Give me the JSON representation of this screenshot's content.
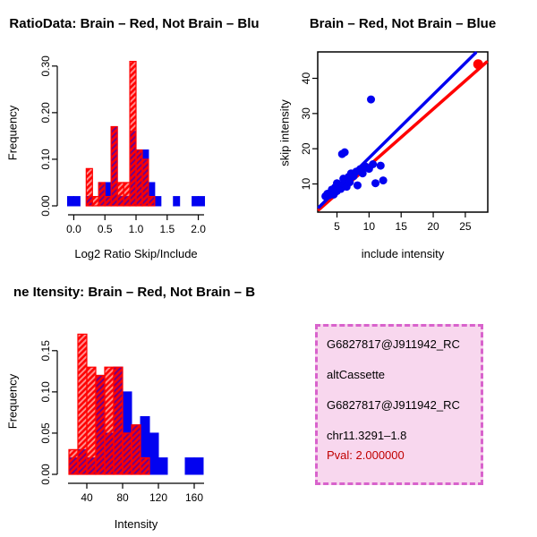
{
  "colors": {
    "red": "#ff0000",
    "blue": "#0202f0"
  },
  "chart_data": [
    {
      "id": "hist_ratio",
      "type": "bar",
      "title": "RatioData: Brain – Red, Not Brain – Blu",
      "xlabel": "Log2 Ratio Skip/Include",
      "ylabel": "Frequency",
      "xlim": [
        -0.15,
        2.15
      ],
      "ylim": [
        0,
        0.315
      ],
      "bin_width": 0.1,
      "bin_starts": [
        -0.1,
        0.0,
        0.1,
        0.2,
        0.3,
        0.4,
        0.5,
        0.6,
        0.7,
        0.8,
        0.9,
        1.0,
        1.1,
        1.2,
        1.3,
        1.4,
        1.5,
        1.6,
        1.7,
        1.8,
        1.9,
        2.0
      ],
      "series": [
        {
          "name": "Not Brain",
          "color": "blue",
          "values": [
            0.02,
            0.02,
            0,
            0.02,
            0,
            0.05,
            0.05,
            0.17,
            0.02,
            0.02,
            0.16,
            0.12,
            0.12,
            0.05,
            0.02,
            0,
            0,
            0.02,
            0,
            0,
            0.02,
            0.02
          ]
        },
        {
          "name": "Brain",
          "color": "red",
          "values": [
            0,
            0,
            0,
            0.08,
            0.02,
            0.05,
            0.02,
            0.17,
            0.05,
            0.05,
            0.31,
            0.12,
            0.1,
            0.02,
            0,
            0,
            0,
            0,
            0,
            0,
            0,
            0
          ]
        }
      ],
      "xticks": [
        0.0,
        0.5,
        1.0,
        1.5,
        2.0
      ],
      "xtick_labels": [
        "0.0",
        "0.5",
        "1.0",
        "1.5",
        "2.0"
      ],
      "yticks": [
        0.0,
        0.1,
        0.2,
        0.3
      ],
      "ytick_labels": [
        "0.00",
        "0.10",
        "0.20",
        "0.30"
      ]
    },
    {
      "id": "scatter",
      "type": "scatter",
      "title": "Brain – Red, Not Brain – Blue",
      "xlabel": "include intensity",
      "ylabel": "skip intensity",
      "xlim": [
        2,
        28.5
      ],
      "ylim": [
        2,
        47.5
      ],
      "series": [
        {
          "name": "Not Brain",
          "color": "blue",
          "points": [
            [
              3.2,
              6.5
            ],
            [
              3.5,
              7.2
            ],
            [
              3.8,
              6.8
            ],
            [
              4,
              7.5
            ],
            [
              4.2,
              8.4
            ],
            [
              4.5,
              7
            ],
            [
              4.7,
              9
            ],
            [
              5,
              8
            ],
            [
              5,
              10.2
            ],
            [
              5.3,
              9.4
            ],
            [
              5.6,
              8.6
            ],
            [
              5.8,
              18.5
            ],
            [
              6,
              10
            ],
            [
              6,
              11.5
            ],
            [
              6.2,
              19
            ],
            [
              6.5,
              9.2
            ],
            [
              6.8,
              12
            ],
            [
              7,
              10.5
            ],
            [
              7.2,
              13
            ],
            [
              7.6,
              12.2
            ],
            [
              8,
              13.5
            ],
            [
              8.2,
              9.6
            ],
            [
              8.6,
              14.2
            ],
            [
              9,
              13
            ],
            [
              9.4,
              15
            ],
            [
              10,
              14.3
            ],
            [
              10.3,
              34
            ],
            [
              10.6,
              15.6
            ],
            [
              11,
              10.2
            ],
            [
              11.8,
              15.2
            ],
            [
              12.2,
              11
            ]
          ]
        },
        {
          "name": "Brain",
          "color": "red",
          "points": [
            [
              27,
              44
            ]
          ]
        }
      ],
      "lines": [
        {
          "color": "red",
          "from": [
            2.2,
            2.7
          ],
          "to": [
            28.3,
            44.6
          ]
        },
        {
          "color": "blue",
          "from": [
            2.2,
            3.4
          ],
          "to": [
            26.6,
            47.2
          ]
        }
      ],
      "xticks": [
        5,
        10,
        15,
        20,
        25
      ],
      "xtick_labels": [
        "5",
        "10",
        "15",
        "20",
        "25"
      ],
      "yticks": [
        10,
        20,
        30,
        40
      ],
      "ytick_labels": [
        "10",
        "20",
        "30",
        "40"
      ]
    },
    {
      "id": "hist_intensity",
      "type": "bar",
      "title": "ne Itensity: Brain – Red, Not Brain – B",
      "xlabel": "Intensity",
      "ylabel": "Frequency",
      "xlim": [
        15,
        175
      ],
      "ylim": [
        0,
        0.178
      ],
      "bin_width": 10,
      "bin_starts": [
        20,
        30,
        40,
        50,
        60,
        70,
        80,
        90,
        100,
        110,
        120,
        130,
        140,
        150,
        160
      ],
      "series": [
        {
          "name": "Not Brain",
          "color": "blue",
          "values": [
            0.02,
            0.03,
            0.02,
            0.12,
            0.05,
            0.13,
            0.1,
            0.06,
            0.07,
            0.05,
            0.02,
            0,
            0,
            0.02,
            0.02
          ]
        },
        {
          "name": "Brain",
          "color": "red",
          "values": [
            0.03,
            0.17,
            0.13,
            0.12,
            0.13,
            0.13,
            0.05,
            0.06,
            0.02,
            0,
            0,
            0,
            0,
            0,
            0
          ]
        }
      ],
      "xticks": [
        40,
        80,
        120,
        160
      ],
      "xtick_labels": [
        "40",
        "80",
        "120",
        "160"
      ],
      "yticks": [
        0.0,
        0.05,
        0.1,
        0.15
      ],
      "ytick_labels": [
        "0.00",
        "0.05",
        "0.10",
        "0.15"
      ]
    }
  ],
  "info_box": {
    "lines": [
      "G6827817@J911942_RC",
      "altCassette",
      "G6827817@J911942_RC",
      "chr11.3291–1.8"
    ],
    "pval": "Pval: 2.000000"
  }
}
